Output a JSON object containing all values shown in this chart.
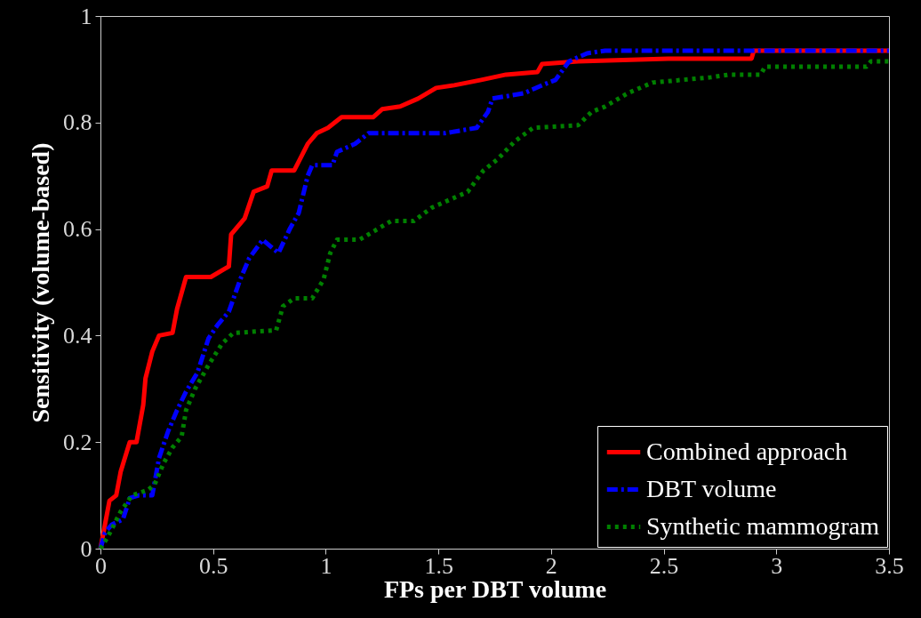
{
  "chart_data": {
    "type": "line",
    "xlabel": "FPs per DBT volume",
    "ylabel": "Sensitivity  (volume-based)",
    "xlim": [
      0,
      3.5
    ],
    "xticks": [
      0,
      0.5,
      1,
      1.5,
      2,
      2.5,
      3,
      3.5
    ],
    "ylim": [
      0,
      1
    ],
    "yticks": [
      0,
      0.2,
      0.4,
      0.6,
      0.8,
      1
    ],
    "grid": false,
    "legend": "bottom right",
    "marker": "none",
    "series": [
      {
        "name": "Combined approach",
        "color": "#ff0000",
        "line_style": "solid",
        "x": [
          0,
          0.02,
          0.04,
          0.07,
          0.09,
          0.13,
          0.16,
          0.19,
          0.2,
          0.23,
          0.26,
          0.32,
          0.34,
          0.38,
          0.49,
          0.57,
          0.58,
          0.64,
          0.68,
          0.74,
          0.76,
          0.86,
          0.92,
          0.96,
          1.01,
          1.07,
          1.21,
          1.25,
          1.33,
          1.41,
          1.49,
          1.57,
          1.69,
          1.8,
          1.94,
          1.96,
          2.12,
          2.52,
          2.89,
          2.9,
          3.5
        ],
        "values": [
          0,
          0.045,
          0.09,
          0.1,
          0.145,
          0.2,
          0.2,
          0.27,
          0.32,
          0.37,
          0.4,
          0.405,
          0.45,
          0.51,
          0.51,
          0.53,
          0.59,
          0.62,
          0.67,
          0.68,
          0.71,
          0.71,
          0.76,
          0.78,
          0.79,
          0.81,
          0.81,
          0.825,
          0.83,
          0.845,
          0.865,
          0.87,
          0.88,
          0.89,
          0.895,
          0.91,
          0.915,
          0.92,
          0.92,
          0.935,
          0.935
        ]
      },
      {
        "name": "DBT volume",
        "color": "#0000ff",
        "line_style": "dashed",
        "x": [
          0,
          0.02,
          0.05,
          0.1,
          0.13,
          0.17,
          0.23,
          0.26,
          0.3,
          0.34,
          0.38,
          0.43,
          0.48,
          0.52,
          0.57,
          0.62,
          0.66,
          0.72,
          0.79,
          0.84,
          0.88,
          0.92,
          0.94,
          1.03,
          1.05,
          1.13,
          1.19,
          1.53,
          1.67,
          1.72,
          1.74,
          1.88,
          1.96,
          2.02,
          2.08,
          2.16,
          2.24,
          3.5
        ],
        "values": [
          0,
          0.03,
          0.045,
          0.055,
          0.095,
          0.1,
          0.1,
          0.17,
          0.22,
          0.26,
          0.295,
          0.33,
          0.395,
          0.42,
          0.445,
          0.505,
          0.545,
          0.58,
          0.555,
          0.6,
          0.63,
          0.7,
          0.72,
          0.72,
          0.745,
          0.76,
          0.78,
          0.78,
          0.79,
          0.82,
          0.845,
          0.855,
          0.87,
          0.88,
          0.915,
          0.93,
          0.935,
          0.935
        ]
      },
      {
        "name": "Synthetic mammogram",
        "color": "#008000",
        "line_style": "dotted",
        "x": [
          0,
          0.03,
          0.06,
          0.09,
          0.14,
          0.21,
          0.24,
          0.28,
          0.32,
          0.36,
          0.38,
          0.42,
          0.48,
          0.54,
          0.59,
          0.78,
          0.81,
          0.86,
          0.94,
          0.99,
          1.02,
          1.05,
          1.15,
          1.23,
          1.29,
          1.39,
          1.47,
          1.55,
          1.63,
          1.7,
          1.76,
          1.84,
          1.92,
          2.12,
          2.18,
          2.24,
          2.34,
          2.45,
          2.71,
          2.79,
          2.93,
          2.95,
          3.4,
          3.42,
          3.5
        ],
        "values": [
          0,
          0.02,
          0.045,
          0.07,
          0.1,
          0.11,
          0.12,
          0.16,
          0.19,
          0.21,
          0.26,
          0.3,
          0.345,
          0.385,
          0.405,
          0.41,
          0.455,
          0.47,
          0.47,
          0.505,
          0.555,
          0.58,
          0.58,
          0.6,
          0.615,
          0.615,
          0.64,
          0.655,
          0.67,
          0.71,
          0.73,
          0.765,
          0.79,
          0.795,
          0.82,
          0.83,
          0.855,
          0.875,
          0.885,
          0.89,
          0.89,
          0.905,
          0.905,
          0.915,
          0.915
        ]
      }
    ]
  }
}
